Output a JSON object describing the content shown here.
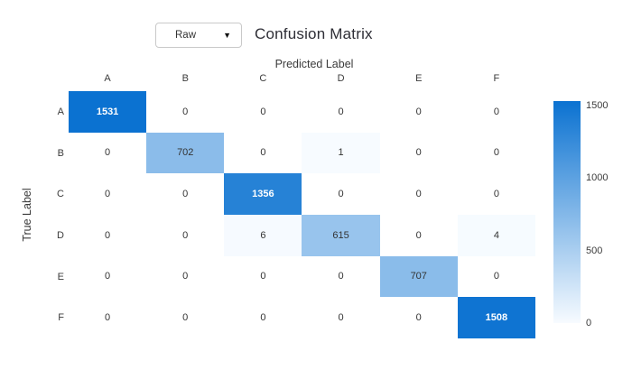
{
  "header": {
    "dropdown": {
      "value": "Raw",
      "caret_icon": "▼"
    },
    "title": "Confusion Matrix"
  },
  "chart_data": {
    "type": "heatmap",
    "title": "Confusion Matrix",
    "xlabel": "Predicted Label",
    "ylabel": "True Label",
    "x_categories": [
      "A",
      "B",
      "C",
      "D",
      "E",
      "F"
    ],
    "y_categories": [
      "A",
      "B",
      "C",
      "D",
      "E",
      "F"
    ],
    "matrix": [
      [
        1531,
        0,
        0,
        0,
        0,
        0
      ],
      [
        0,
        702,
        0,
        1,
        0,
        0
      ],
      [
        0,
        0,
        1356,
        0,
        0,
        0
      ],
      [
        0,
        0,
        6,
        615,
        0,
        4
      ],
      [
        0,
        0,
        0,
        0,
        707,
        0
      ],
      [
        0,
        0,
        0,
        0,
        0,
        1508
      ]
    ],
    "vmin": 0,
    "vmax": 1531,
    "colorbar_ticks": [
      1500,
      1000,
      500,
      0
    ],
    "legend_position": "right",
    "colors": {
      "high": "#0b72d1",
      "low": "#f7fbff",
      "zero": "#ffffff",
      "text_dark": "#333333",
      "text_light": "#ffffff"
    }
  }
}
